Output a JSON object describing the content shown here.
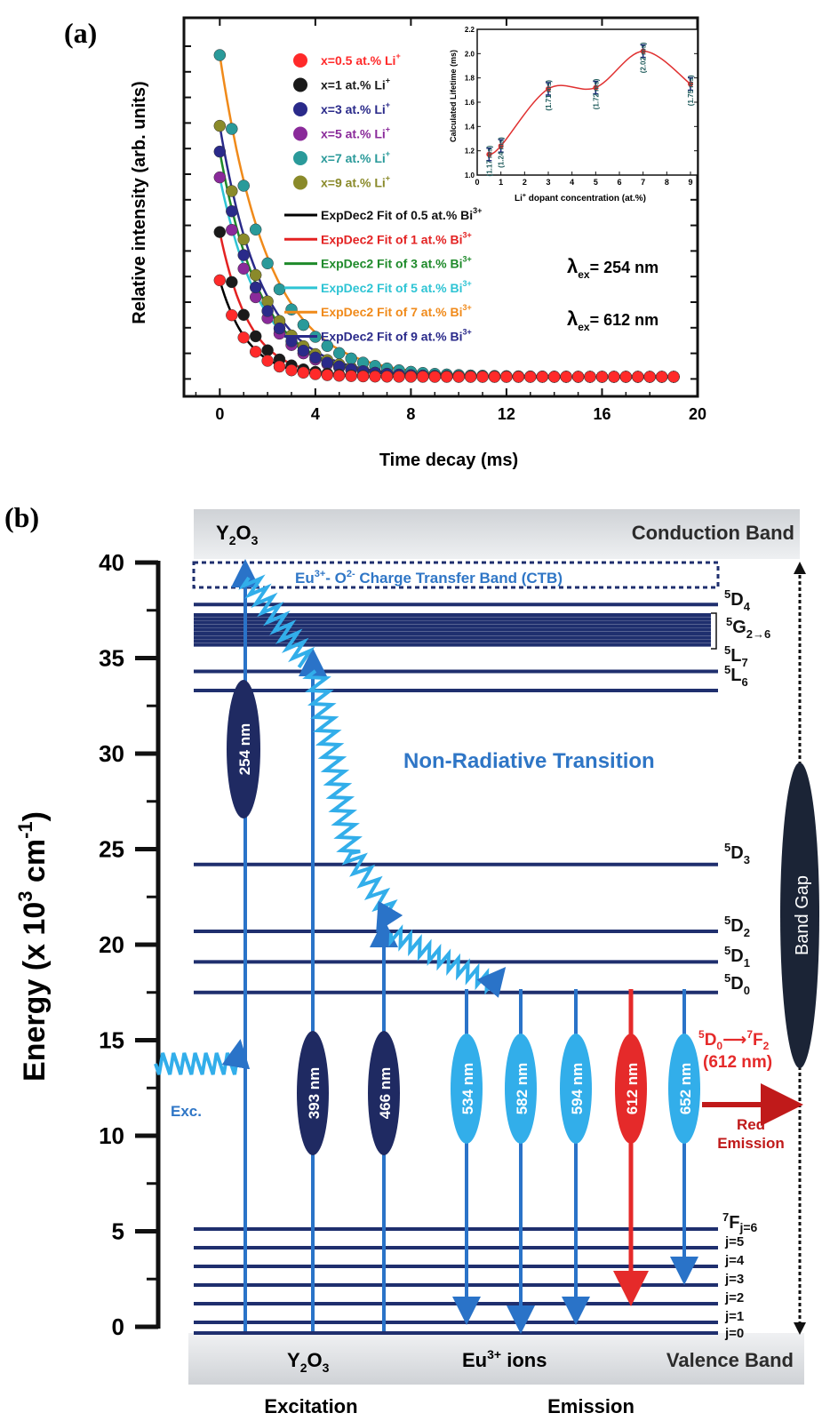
{
  "panel_a": {
    "label": "(a)",
    "chart_data": {
      "type": "scatter",
      "xlabel": "Time decay (ms)",
      "ylabel": "Relative intensity (arb. units)",
      "xlim": [
        -1.5,
        20
      ],
      "xticks": [
        0,
        4,
        8,
        12,
        16,
        20
      ],
      "ylim": [
        0,
        1.05
      ],
      "grid": false,
      "legend_position": "top-center",
      "series": [
        {
          "name": "x=0.5 at.% Li",
          "sup": "+",
          "color": "#ff2a2a",
          "a": 0.3,
          "tau": 1.17,
          "fit_name": "ExpDec2 Fit of 0.5 at.% Bi",
          "fit_color": "#000000"
        },
        {
          "name": "x=1 at.% Li",
          "sup": "+",
          "color": "#1a1a1a",
          "a": 0.45,
          "tau": 1.24,
          "fit_name": "ExpDec2 Fit of 1 at.% Bi",
          "fit_color": "#e32222"
        },
        {
          "name": "x=3 at.% Li",
          "sup": "+",
          "color": "#2a2a8a",
          "a": 0.7,
          "tau": 1.71,
          "fit_name": "ExpDec2 Fit of 3 at.% Bi",
          "fit_color": "#1e8a2a"
        },
        {
          "name": "x=5 at.% Li",
          "sup": "+",
          "color": "#8a2a9a",
          "a": 0.62,
          "tau": 1.72,
          "fit_name": "ExpDec2 Fit of 5 at.% Bi",
          "fit_color": "#2ec4d4"
        },
        {
          "name": "x=7 at.% Li",
          "sup": "+",
          "color": "#2a9a9a",
          "a": 1.0,
          "tau": 2.02,
          "fit_name": "ExpDec2 Fit of 7 at.% Bi",
          "fit_color": "#f08a1a"
        },
        {
          "name": "x=9 at.% Li",
          "sup": "+",
          "color": "#8a8a2a",
          "a": 0.78,
          "tau": 1.75,
          "fit_name": "ExpDec2 Fit of 9 at.% Bi",
          "fit_color": "#2a2a8a"
        }
      ],
      "fit_sup": "3+",
      "annotations": [
        {
          "text": "λ",
          "sub": "ex",
          "rest": "= 254 nm"
        },
        {
          "text": "λ",
          "sub": "ex",
          "rest": "= 612 nm"
        }
      ]
    },
    "inset": {
      "type": "line",
      "xlabel": "Li",
      "xlabel_sup": "+",
      "xlabel_rest": " dopant concentration (at.%)",
      "ylabel": "Calculated Lifetime (ms)",
      "xlim": [
        0,
        9.3
      ],
      "ylim": [
        1.0,
        2.2
      ],
      "xticks": [
        0,
        1,
        2,
        3,
        4,
        5,
        6,
        7,
        8,
        9
      ],
      "yticks": [
        1.0,
        1.2,
        1.4,
        1.6,
        1.8,
        2.0,
        2.2
      ],
      "x": [
        0.5,
        1,
        3,
        5,
        7,
        9
      ],
      "y": [
        1.17,
        1.24,
        1.71,
        1.72,
        2.02,
        1.75
      ],
      "labels": [
        "(1.17 ms)",
        "(1.24 ms)",
        "(1.71 ms)",
        "(1.72 ms)",
        "(2.02 ms)",
        "(1.75 ms)"
      ]
    }
  },
  "panel_b": {
    "label": "(b)",
    "chart_data": {
      "type": "diagram",
      "ylabel": "Energy (x 10",
      "ylabel_sup": "3",
      "ylabel_unit": " cm",
      "ylabel_unit_sup": "-1",
      "ylabel_close": ")",
      "ylim": [
        0,
        40
      ],
      "yticks": [
        0,
        5,
        10,
        15,
        20,
        25,
        30,
        35,
        40
      ],
      "levels": [
        {
          "term": "5D4",
          "energy": 37.8
        },
        {
          "term": "5G2-6",
          "energy": 36.0
        },
        {
          "term": "5L7",
          "energy": 34.3
        },
        {
          "term": "5L6",
          "energy": 33.3
        },
        {
          "term": "5D3",
          "energy": 24.2
        },
        {
          "term": "5D2",
          "energy": 20.7
        },
        {
          "term": "5D1",
          "energy": 19.1
        },
        {
          "term": "5D0",
          "energy": 17.5
        }
      ],
      "excitation_nm": [
        254,
        393,
        466
      ],
      "emission_nm": [
        534,
        582,
        594,
        612,
        652
      ]
    },
    "texts": {
      "host_top": "Y",
      "host_top_sub": "2",
      "host_top_o": "O",
      "host_top_sub2": "3",
      "conduction_band": "Conduction Band",
      "ctb_a": "Eu",
      "ctb_a_sup": "3+",
      "ctb_b": "- O",
      "ctb_b_sup": "2-",
      "ctb_c": " Charge Transfer Band (CTB)",
      "d4_sup": "5",
      "d4": "D",
      "d4_sub": "4",
      "g_sup": "5",
      "g": "G",
      "g_sub": "2→6",
      "l7_sup": "5",
      "l7": "L",
      "l7_sub": "7",
      "l6_sup": "5",
      "l6": "L",
      "l6_sub": "6",
      "d3_sup": "5",
      "d3": "D",
      "d3_sub": "3",
      "d2_sup": "5",
      "d2": "D",
      "d2_sub": "2",
      "d1_sup": "5",
      "d1": "D",
      "d1_sub": "1",
      "d0_sup": "5",
      "d0": "D",
      "d0_sub": "0",
      "non_radiative": "Non-Radiative Transition",
      "band_gap": "Band Gap",
      "exc": "Exc.",
      "nm_254": "254 nm",
      "nm_393": "393 nm",
      "nm_466": "466 nm",
      "nm_534": "534 nm",
      "nm_582": "582 nm",
      "nm_594": "594 nm",
      "nm_612": "612 nm",
      "nm_652": "652 nm",
      "trans_sup1": "5",
      "trans_d": "D",
      "trans_sub1": "0",
      "trans_arrow": "⟶",
      "trans_sup2": "7",
      "trans_f": "F",
      "trans_sub2": "2",
      "trans_nm": "(612 nm)",
      "red_emission_1": "Red",
      "red_emission_2": "Emission",
      "f_sup": "7",
      "f": "F",
      "f_sub": "j=6",
      "j5": "j=5",
      "j4": "j=4",
      "j3": "j=3",
      "j2": "j=2",
      "j1": "j=1",
      "j0": "j=0",
      "host_bottom": "Y",
      "host_bottom_sub": "2",
      "host_bottom_o": "O",
      "host_bottom_sub2": "3",
      "eu_ions": "Eu",
      "eu_ions_sup": "3+",
      "eu_ions_rest": " ions",
      "valence_band": "Valence Band",
      "excitation": "Excitation",
      "emission": "Emission"
    }
  }
}
